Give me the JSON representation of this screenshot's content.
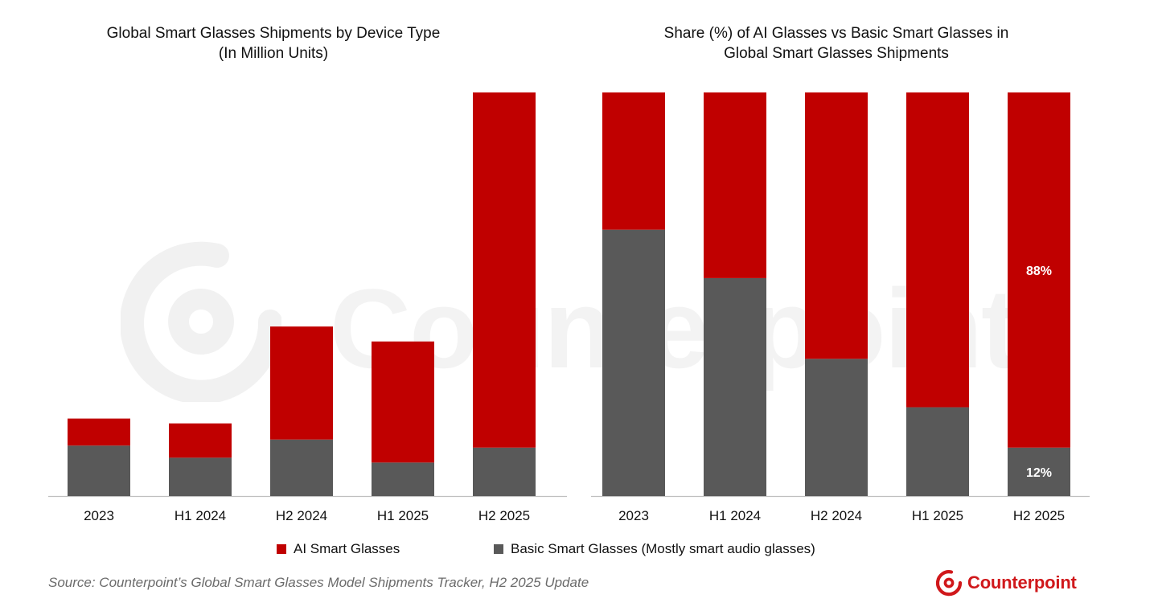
{
  "colors": {
    "ai": "#c00000",
    "basic": "#595959",
    "axis": "#bfbfbf",
    "brand": "#d0181b"
  },
  "chart_data": [
    {
      "type": "bar",
      "stacked": true,
      "title_lines": [
        "Global Smart Glasses Shipments by Device Type",
        "(In Million Units)"
      ],
      "categories": [
        "2023",
        "H1 2024",
        "H2 2024",
        "H1 2025",
        "H2 2025"
      ],
      "series": [
        {
          "name": "Basic Smart Glasses (Mostly smart audio glasses)",
          "values": [
            1.25,
            0.95,
            1.4,
            0.83,
            1.2
          ]
        },
        {
          "name": "AI Smart Glasses",
          "values": [
            0.67,
            0.85,
            2.8,
            3.0,
            8.8
          ]
        }
      ],
      "ylim": [
        0,
        10
      ],
      "xlabel": "",
      "ylabel": ""
    },
    {
      "type": "bar",
      "stacked": true,
      "percent": true,
      "title_lines": [
        "Share (%) of AI Glasses vs Basic Smart Glasses in",
        "Global Smart Glasses Shipments"
      ],
      "categories": [
        "2023",
        "H1 2024",
        "H2 2024",
        "H1 2025",
        "H2 2025"
      ],
      "series": [
        {
          "name": "Basic Smart Glasses (Mostly smart audio glasses)",
          "values": [
            66,
            54,
            34,
            22,
            12
          ]
        },
        {
          "name": "AI Smart Glasses",
          "values": [
            34,
            46,
            66,
            78,
            88
          ]
        }
      ],
      "labels": [
        {
          "category": "H2 2025",
          "series": "AI Smart Glasses",
          "text": "88%"
        },
        {
          "category": "H2 2025",
          "series": "Basic Smart Glasses (Mostly smart audio glasses)",
          "text": "12%"
        }
      ],
      "ylim": [
        0,
        100
      ],
      "xlabel": "",
      "ylabel": ""
    }
  ],
  "legend": {
    "ai_label": "AI Smart Glasses",
    "basic_label": "Basic Smart Glasses (Mostly smart audio glasses)"
  },
  "footer": {
    "source": "Source: Counterpoint’s Global Smart Glasses Model Shipments Tracker, H2 2025 Update",
    "brand": "Counterpoint"
  },
  "watermark": {
    "text": "Counterpoint"
  },
  "icons": {
    "brand_logo": "counterpoint-logo-icon",
    "watermark_logo": "counterpoint-watermark-icon"
  }
}
